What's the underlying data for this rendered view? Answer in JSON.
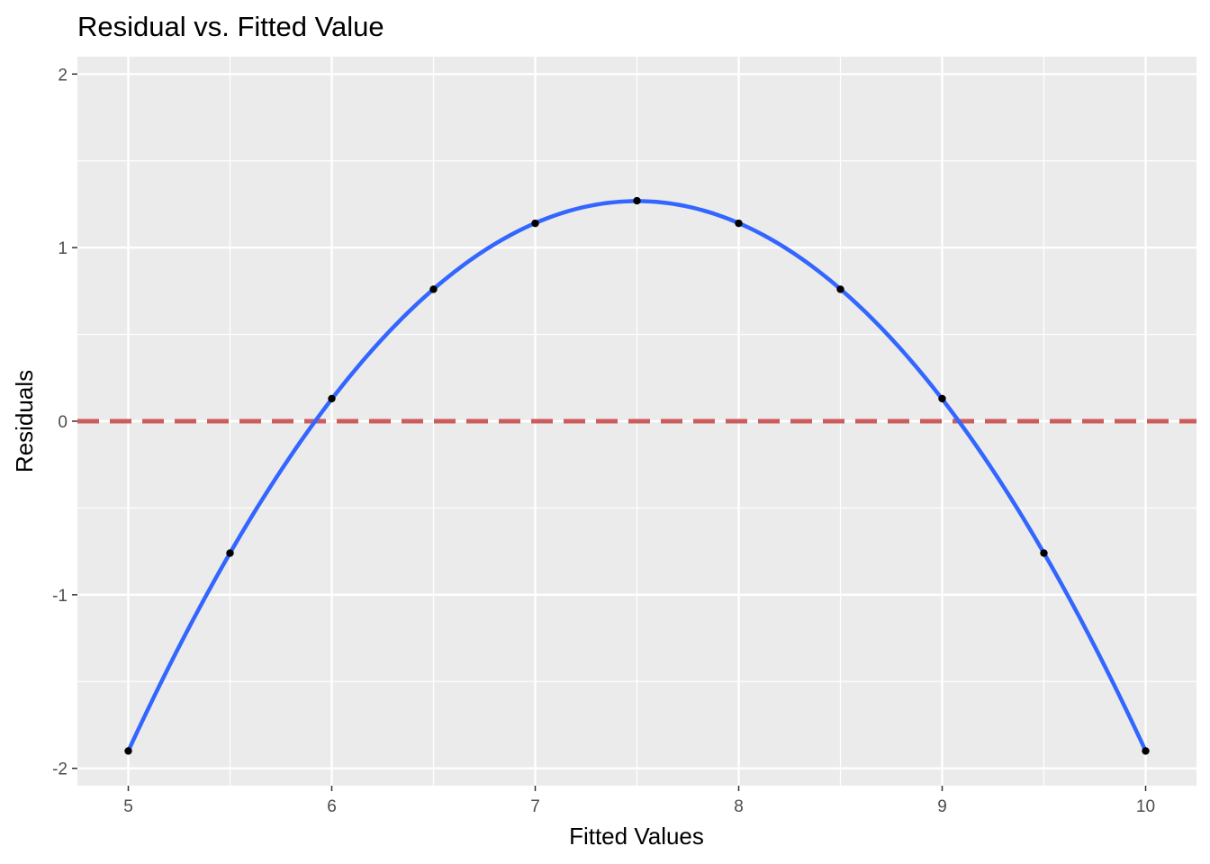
{
  "chart_data": {
    "type": "scatter",
    "title": "Residual vs. Fitted Value",
    "xlabel": "Fitted Values",
    "ylabel": "Residuals",
    "xlim": [
      4.75,
      10.25
    ],
    "ylim": [
      -2.1,
      2.1
    ],
    "x_ticks": [
      5,
      6,
      7,
      8,
      9,
      10
    ],
    "x_tick_labels": [
      "5",
      "6",
      "7",
      "8",
      "9",
      "10"
    ],
    "y_ticks": [
      -2,
      -1,
      0,
      1,
      2
    ],
    "y_tick_labels": [
      "-2",
      "-1",
      "0",
      "1",
      "2"
    ],
    "grid": true,
    "panel_background": "#EBEBEB",
    "points": {
      "x": [
        5,
        5.5,
        6,
        6.5,
        7,
        7.5,
        8,
        8.5,
        9,
        9.5,
        10
      ],
      "y": [
        -1.9,
        -0.76,
        0.13,
        0.76,
        1.14,
        1.27,
        1.14,
        0.76,
        0.13,
        -0.76,
        -1.9
      ],
      "color": "#000000"
    },
    "smooth_curve": {
      "color": "#3366FF",
      "method": "quadratic fit"
    },
    "reference_line": {
      "y": 0,
      "style": "dashed",
      "color": "#CD5C5C"
    }
  }
}
